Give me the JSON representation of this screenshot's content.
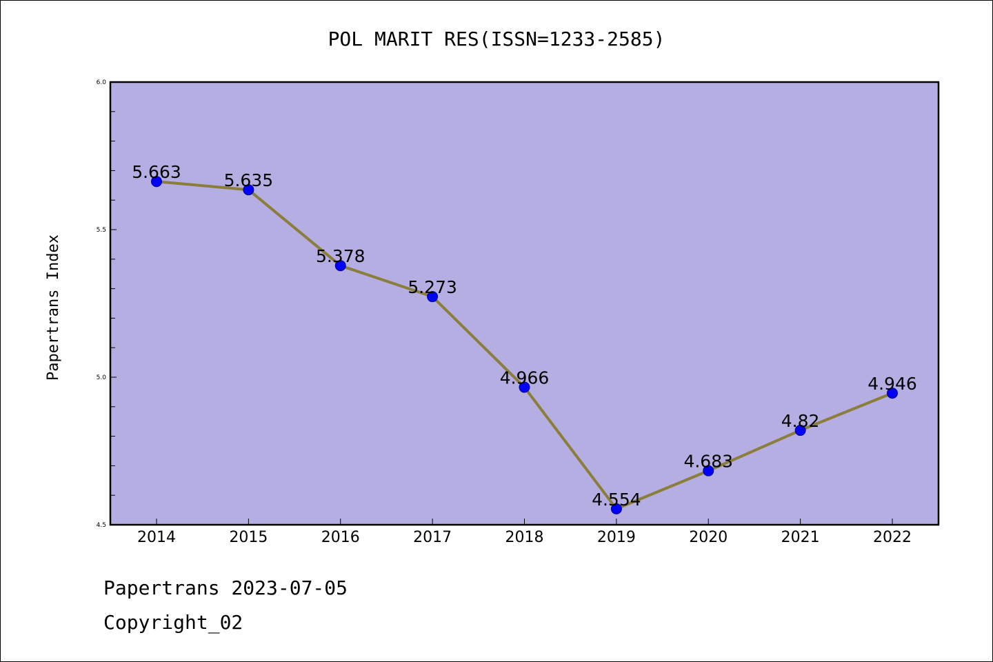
{
  "chart_data": {
    "type": "line",
    "title": "POL MARIT RES(ISSN=1233-2585)",
    "xlabel": "",
    "ylabel": "Papertrans Index",
    "categories": [
      "2014",
      "2015",
      "2016",
      "2017",
      "2018",
      "2019",
      "2020",
      "2021",
      "2022"
    ],
    "values": [
      5.663,
      5.635,
      5.378,
      5.273,
      4.966,
      4.554,
      4.683,
      4.82,
      4.946
    ],
    "data_labels": [
      "5.663",
      "5.635",
      "5.378",
      "5.273",
      "4.966",
      "4.554",
      "4.683",
      "4.82",
      "4.946"
    ],
    "ylim": [
      4.5,
      6.0
    ],
    "yticks": [
      "4.5",
      "5.0",
      "5.5",
      "6.0"
    ],
    "grid": false,
    "colors": {
      "plot_background": "#b4aee2",
      "line": "#8b7d3a",
      "marker": "#0000ff",
      "marker_edge": "#00008b"
    }
  },
  "footer": {
    "line1": "Papertrans 2023-07-05",
    "line2": "Copyright_02"
  }
}
